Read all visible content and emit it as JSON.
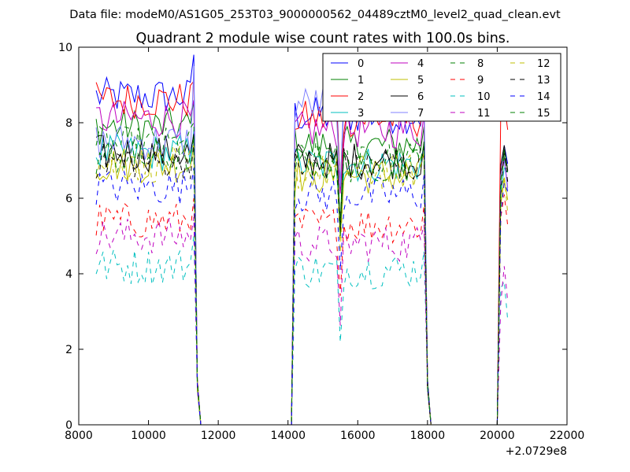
{
  "chart_data": {
    "type": "line",
    "suptitle": "Data file: modeM0/AS1G05_253T03_9000000562_04489cztM0_level2_quad_clean.evt",
    "title": "Quadrant 2 module wise count rates with 100.0s bins.",
    "xlabel": "",
    "ylabel": "",
    "xlim": [
      8000,
      22000
    ],
    "ylim": [
      0,
      10
    ],
    "x_offset_label": "+2.0729e8",
    "x_ticks": [
      8000,
      10000,
      12000,
      14000,
      16000,
      18000,
      20000,
      22000
    ],
    "x_tick_labels": [
      "8000",
      "10000",
      "12000",
      "14000",
      "16000",
      "18000",
      "20000",
      "22000"
    ],
    "y_ticks": [
      0,
      2,
      4,
      6,
      8,
      10
    ],
    "y_tick_labels": [
      "0",
      "2",
      "4",
      "6",
      "8",
      "10"
    ],
    "grid": false,
    "legend_position": "top-right",
    "segments": [
      {
        "x_start": 8500,
        "x_end": 11300,
        "step": 100
      },
      {
        "x_start": 14200,
        "x_end": 17900,
        "step": 100
      },
      {
        "x_start": 20100,
        "x_end": 20300,
        "step": 100
      }
    ],
    "gaps_zero": [
      {
        "x_start": 11400,
        "x_end": 14100
      },
      {
        "x_start": 18000,
        "x_end": 20000
      }
    ],
    "series": [
      {
        "name": "0",
        "color": "#0000ff",
        "dash": "solid",
        "level1": 8.7,
        "level2": 8.2,
        "level3": 6.8,
        "peak": 9.8
      },
      {
        "name": "1",
        "color": "#008000",
        "dash": "solid",
        "level1": 7.9,
        "level2": 7.4,
        "level3": 6.7,
        "peak": 8.6
      },
      {
        "name": "2",
        "color": "#ff0000",
        "dash": "solid",
        "level1": 8.6,
        "level2": 8.1,
        "level3": 7.9,
        "peak": 9.1
      },
      {
        "name": "3",
        "color": "#00bfbf",
        "dash": "solid",
        "level1": 7.2,
        "level2": 6.9,
        "level3": 6.2,
        "peak": 7.8
      },
      {
        "name": "4",
        "color": "#bf00bf",
        "dash": "solid",
        "level1": 8.1,
        "level2": 7.8,
        "level3": 6.5,
        "peak": 8.6
      },
      {
        "name": "5",
        "color": "#bfbf00",
        "dash": "solid",
        "level1": 6.9,
        "level2": 6.6,
        "level3": 5.9,
        "peak": 7.4
      },
      {
        "name": "6",
        "color": "#000000",
        "dash": "solid",
        "level1": 7.2,
        "level2": 7.0,
        "level3": 6.8,
        "peak": 7.7
      },
      {
        "name": "7",
        "color": "#8080ff",
        "dash": "solid",
        "level1": 7.5,
        "level2": 8.5,
        "level3": 6.4,
        "peak": 9.5
      },
      {
        "name": "8",
        "color": "#008000",
        "dash": "dashed",
        "level1": 7.4,
        "level2": 7.0,
        "level3": 6.6,
        "peak": 8.0
      },
      {
        "name": "9",
        "color": "#ff0000",
        "dash": "dashed",
        "level1": 5.4,
        "level2": 5.3,
        "level3": 5.5,
        "peak": 6.0
      },
      {
        "name": "10",
        "color": "#00bfbf",
        "dash": "dashed",
        "level1": 4.2,
        "level2": 4.1,
        "level3": 3.2,
        "peak": 5.0
      },
      {
        "name": "11",
        "color": "#bf00bf",
        "dash": "dashed",
        "level1": 5.0,
        "level2": 4.8,
        "level3": 3.6,
        "peak": 5.5
      },
      {
        "name": "12",
        "color": "#bfbf00",
        "dash": "dashed",
        "level1": 6.9,
        "level2": 6.7,
        "level3": 6.0,
        "peak": 7.4
      },
      {
        "name": "13",
        "color": "#000000",
        "dash": "dashed",
        "level1": 7.0,
        "level2": 6.9,
        "level3": 6.6,
        "peak": 7.5
      },
      {
        "name": "14",
        "color": "#0000ff",
        "dash": "dashed",
        "level1": 6.3,
        "level2": 6.1,
        "level3": 5.8,
        "peak": 6.8
      },
      {
        "name": "15",
        "color": "#008000",
        "dash": "dashed",
        "level1": 7.1,
        "level2": 6.9,
        "level3": 6.5,
        "peak": 7.6
      }
    ]
  }
}
